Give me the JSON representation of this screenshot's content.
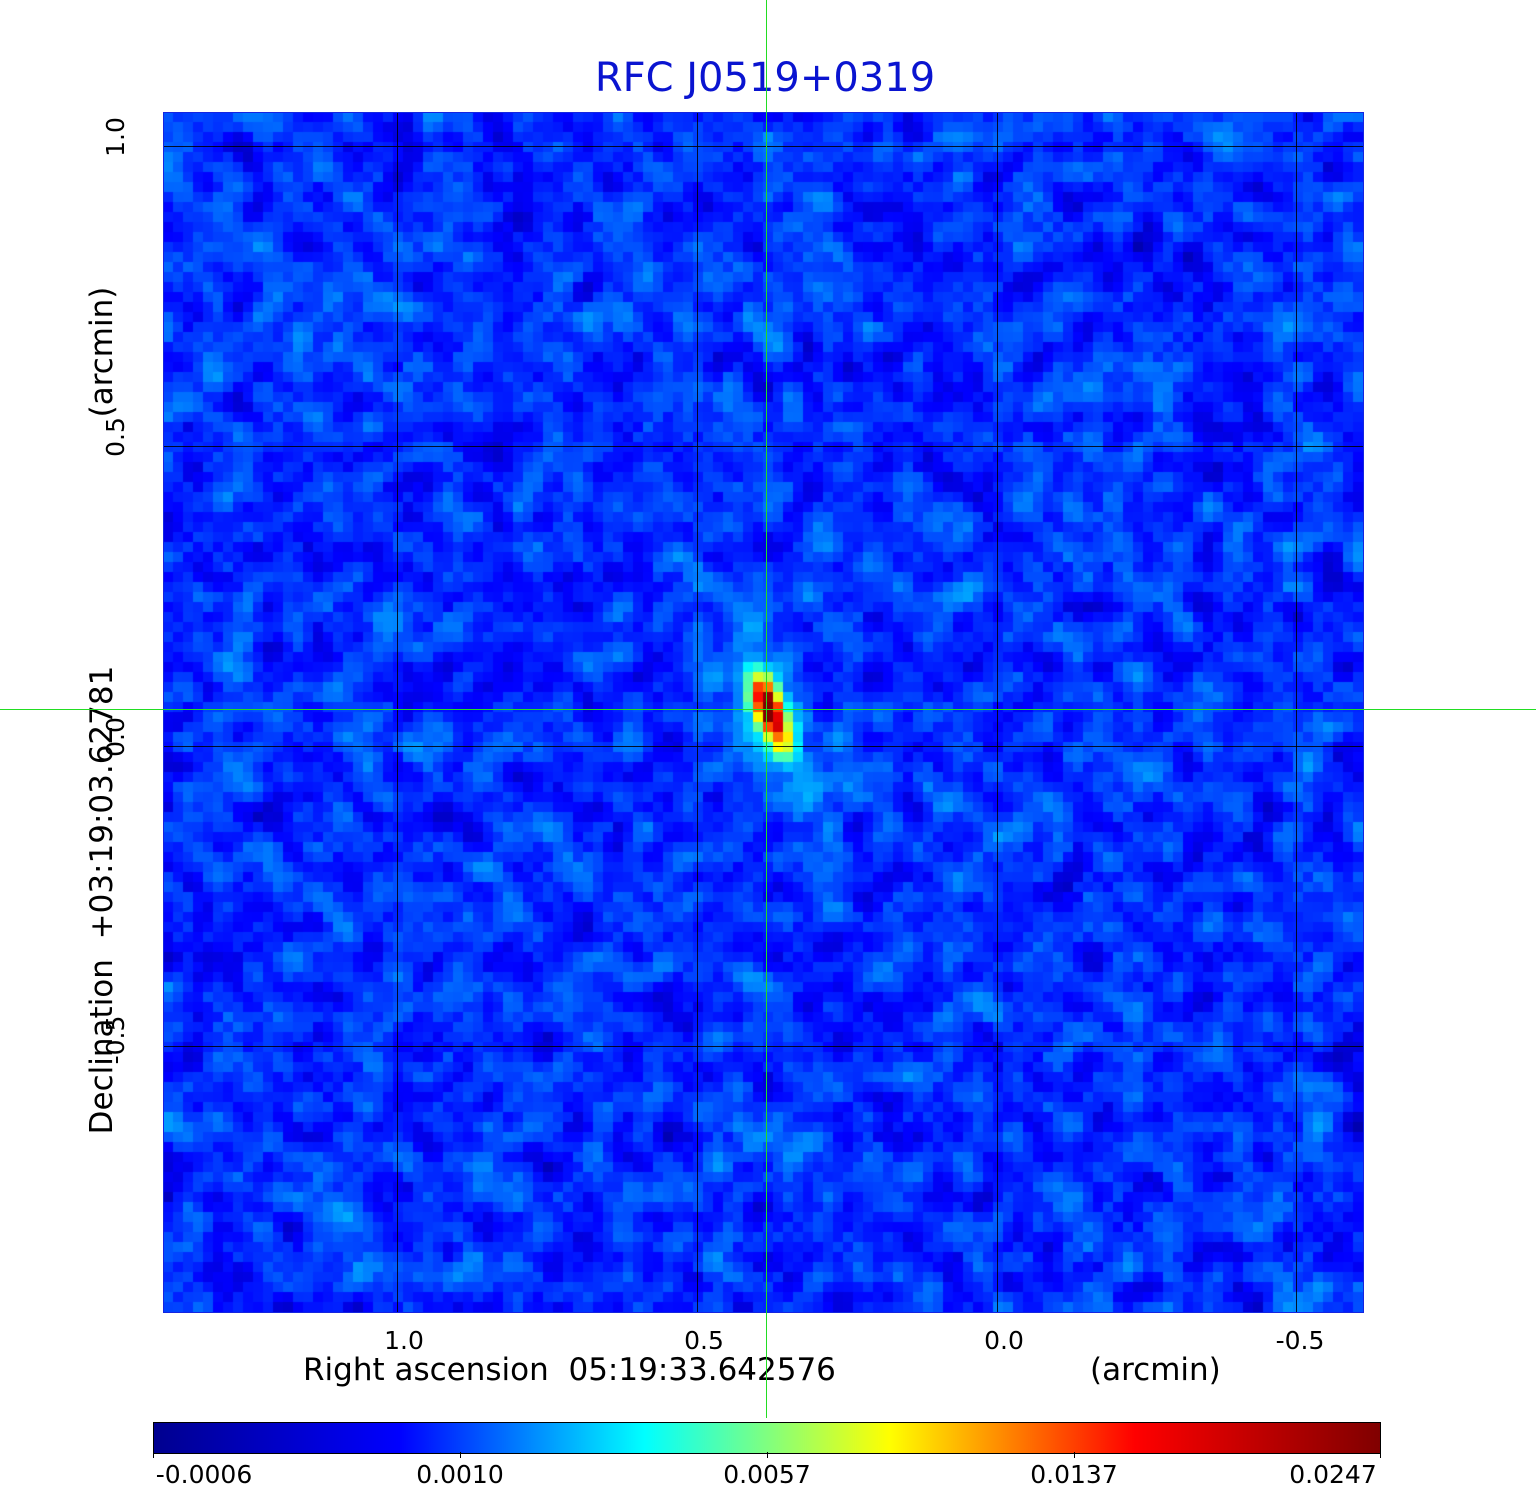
{
  "title": "RFC J0519+0319",
  "x_axis": {
    "label": "Right ascension  05:19:33.642576",
    "unit": "(arcmin)",
    "ticks": [
      "1.0",
      "0.5",
      "0.0",
      "-0.5"
    ]
  },
  "y_axis": {
    "label": "Declination  +03:19:03.62781",
    "unit": "(arcmin)",
    "ticks": [
      "1.0",
      "0.5",
      "0.0",
      "-0.5"
    ]
  },
  "colorbar": {
    "ticks": [
      "-0.0006",
      "0.0010",
      "0.0057",
      "0.0137",
      "0.0247"
    ],
    "colors": [
      "#00008f",
      "#0000ff",
      "#00ffff",
      "#ffff00",
      "#ff0000",
      "#800000"
    ]
  },
  "colors": {
    "title": "#0a14d0",
    "crosshair": "#22dd22",
    "grid": "#000000"
  }
}
